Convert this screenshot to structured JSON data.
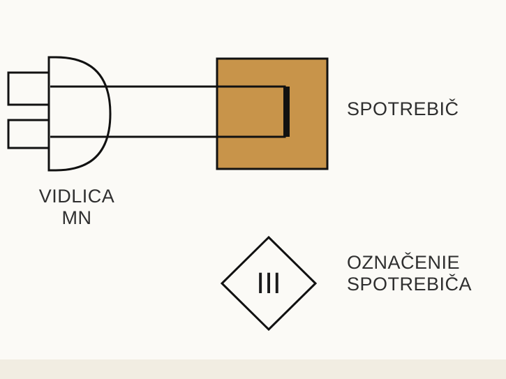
{
  "diagram": {
    "plug": {
      "line1": "VIDLICA",
      "line2": "MN"
    },
    "appliance": {
      "label": "SPOTREBIČ",
      "fill_color": "#c8944a"
    },
    "marking": {
      "line1": "OZNAČENIE",
      "line2": "SPOTREBIČA",
      "symbol": "III"
    },
    "colors": {
      "line": "#111111",
      "text": "#2f2f2f",
      "background": "#fbfaf6"
    }
  }
}
